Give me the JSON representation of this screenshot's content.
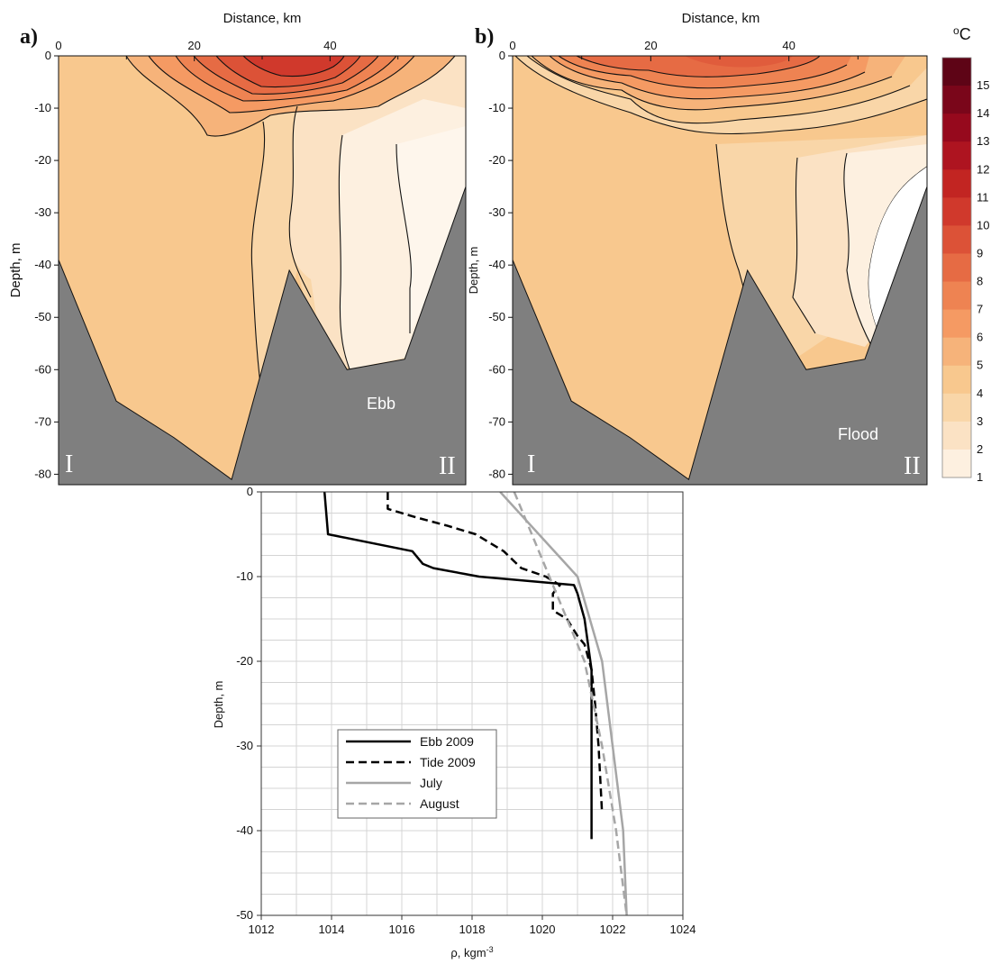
{
  "colors": {
    "bathymetry": "#7f7f7f",
    "scale": [
      "#fdf0e0",
      "#fbe2c4",
      "#f9d6a8",
      "#f8c88e",
      "#f6b37a",
      "#f59a63",
      "#ee8352",
      "#e66b44",
      "#dc5237",
      "#d0392c",
      "#c22522",
      "#ae1420",
      "#96091d",
      "#7a061a",
      "#5e0416"
    ]
  },
  "chart_data": [
    {
      "panel": "a)",
      "type": "heatmap",
      "xlabel": "Distance, km",
      "ylabel": "Depth, m",
      "xticks": [
        "0",
        "20",
        "40"
      ],
      "yticks": [
        "0",
        "-10",
        "-20",
        "-30",
        "-40",
        "-50",
        "-60",
        "-70",
        "-80"
      ],
      "xlim": [
        0,
        60
      ],
      "ylim": [
        -82,
        0
      ],
      "tide": "Ebb",
      "end_labels": [
        "I",
        "II"
      ],
      "bottom_profile": [
        [
          0,
          -39
        ],
        [
          8.5,
          -66
        ],
        [
          17,
          -73
        ],
        [
          25.5,
          -81
        ],
        [
          34,
          -41
        ],
        [
          42.5,
          -60
        ],
        [
          51,
          -58
        ],
        [
          60,
          -25
        ]
      ],
      "surface_core_temp": 10
    },
    {
      "panel": "b)",
      "type": "heatmap",
      "xlabel": "Distance, km",
      "ylabel": "Depth, m",
      "xticks": [
        "0",
        "20",
        "40"
      ],
      "yticks": [
        "0",
        "-10",
        "-20",
        "-30",
        "-40",
        "-50",
        "-60",
        "-70",
        "-80"
      ],
      "xlim": [
        0,
        60
      ],
      "ylim": [
        -82,
        0
      ],
      "tide": "Flood",
      "end_labels": [
        "I",
        "II"
      ],
      "bottom_profile": [
        [
          0,
          -39
        ],
        [
          8.5,
          -66
        ],
        [
          17,
          -73
        ],
        [
          25.5,
          -81
        ],
        [
          34,
          -41
        ],
        [
          42.5,
          -60
        ],
        [
          51,
          -58
        ],
        [
          60,
          -25
        ]
      ],
      "surface_core_temp": 7
    },
    {
      "type": "line",
      "xlabel": "ρ, kgm",
      "xlabel_sup": "-3",
      "ylabel": "Depth, m",
      "xlim": [
        1012,
        1024
      ],
      "ylim": [
        -50,
        0
      ],
      "xticks": [
        "1012",
        "1014",
        "1016",
        "1018",
        "1020",
        "1022",
        "1024"
      ],
      "yticks": [
        "0",
        "-10",
        "-20",
        "-30",
        "-40",
        "-50"
      ],
      "series": [
        {
          "name": "Ebb 2009",
          "color": "#000000",
          "dashed": false,
          "points": [
            [
              1013.8,
              0
            ],
            [
              1013.9,
              -5
            ],
            [
              1016.3,
              -7
            ],
            [
              1016.6,
              -8.5
            ],
            [
              1016.9,
              -9
            ],
            [
              1018.2,
              -10
            ],
            [
              1020.9,
              -11
            ],
            [
              1021.0,
              -12
            ],
            [
              1021.2,
              -15
            ],
            [
              1021.3,
              -18
            ],
            [
              1021.4,
              -21
            ],
            [
              1021.4,
              -27
            ],
            [
              1021.4,
              -33
            ],
            [
              1021.4,
              -41
            ]
          ]
        },
        {
          "name": "Tide 2009",
          "color": "#000000",
          "dashed": true,
          "points": [
            [
              1015.6,
              0
            ],
            [
              1015.6,
              -2
            ],
            [
              1016.4,
              -3
            ],
            [
              1017.3,
              -4
            ],
            [
              1018.1,
              -5
            ],
            [
              1018.9,
              -7
            ],
            [
              1019.4,
              -9
            ],
            [
              1020.1,
              -10
            ],
            [
              1020.5,
              -11
            ],
            [
              1020.3,
              -12
            ],
            [
              1020.3,
              -14
            ],
            [
              1020.7,
              -15
            ],
            [
              1021.0,
              -17
            ],
            [
              1021.2,
              -18
            ],
            [
              1021.4,
              -21
            ],
            [
              1021.5,
              -25
            ],
            [
              1021.6,
              -30
            ],
            [
              1021.7,
              -38
            ]
          ]
        },
        {
          "name": "July",
          "color": "#a6a6a6",
          "dashed": false,
          "points": [
            [
              1018.8,
              0
            ],
            [
              1021.0,
              -10
            ],
            [
              1021.7,
              -20
            ],
            [
              1022.0,
              -30
            ],
            [
              1022.3,
              -40
            ],
            [
              1022.4,
              -50
            ]
          ]
        },
        {
          "name": "August",
          "color": "#a6a6a6",
          "dashed": true,
          "points": [
            [
              1019.2,
              0
            ],
            [
              1020.2,
              -10
            ],
            [
              1021.2,
              -20
            ],
            [
              1021.7,
              -30
            ],
            [
              1022.1,
              -40
            ],
            [
              1022.4,
              -50
            ]
          ]
        }
      ]
    }
  ],
  "colorbar": {
    "unit": "oC",
    "ticks": [
      "15",
      "14",
      "13",
      "12",
      "11",
      "10",
      "9",
      "8",
      "7",
      "6",
      "5",
      "4",
      "3",
      "2",
      "1"
    ]
  }
}
